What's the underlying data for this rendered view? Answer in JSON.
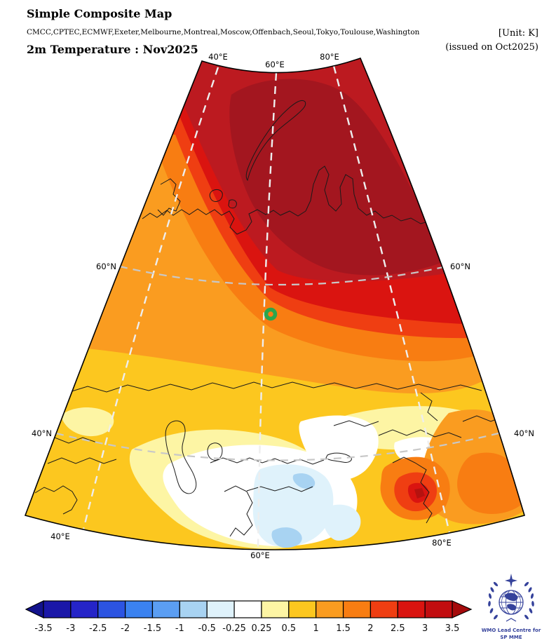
{
  "header": {
    "title": "Simple Composite Map",
    "models": "CMCC,CPTEC,ECMWF,Exeter,Melbourne,Montreal,Moscow,Offenbach,Seoul,Tokyo,Toulouse,Washington",
    "variable": "2m Temperature : Nov2025",
    "unit": "[Unit: K]",
    "issued": "(issued on Oct2025)"
  },
  "map": {
    "grid_labels": {
      "top": [
        "40°E",
        "60°E",
        "80°E"
      ],
      "bottom": [
        "40°E",
        "60°E",
        "80°E"
      ],
      "left": [
        "60°N",
        "40°N"
      ],
      "right": [
        "60°N",
        "40°N"
      ]
    }
  },
  "map_fills": {
    "gold": "#fcc71f",
    "orange": "#fa9c20",
    "dark_orange": "#f87d12",
    "orange_red": "#ef3e12",
    "red": "#da1410",
    "dark_red": "#bc1a20",
    "deep_red": "#a3161f",
    "pale_yellow": "#fdf5a4",
    "white": "#ffffff",
    "pale_blue": "#dff2fb",
    "medium_blue": "#a8d3f2",
    "hot_core": "#b5120f",
    "coastline": "#1a1a1a",
    "meridian": "#eeeeee",
    "parallel": "#c8c8c8",
    "marker": "#2aa64d",
    "outline": "#000000"
  },
  "colorbar": {
    "levels": [
      "-3.5",
      "-3",
      "-2.5",
      "-2",
      "-1.5",
      "-1",
      "-0.5",
      "-0.25",
      "0.25",
      "0.5",
      "1",
      "1.5",
      "2",
      "2.5",
      "3",
      "3.5"
    ],
    "cell_colors": [
      "#1a17a8",
      "#2524c8",
      "#2c54e2",
      "#3b82f0",
      "#5b9ef3",
      "#a8d3f2",
      "#dff2fb",
      "#ffffff",
      "#fdf5a4",
      "#fcc71f",
      "#fa9c20",
      "#f87d12",
      "#ef3e12",
      "#da1410",
      "#c20d10"
    ],
    "arrow_left": "#12128c",
    "arrow_right": "#a50b0c"
  },
  "logo": {
    "line1": "WMO Lead Centre for",
    "line2": "SP MME",
    "color": "#35429b"
  }
}
